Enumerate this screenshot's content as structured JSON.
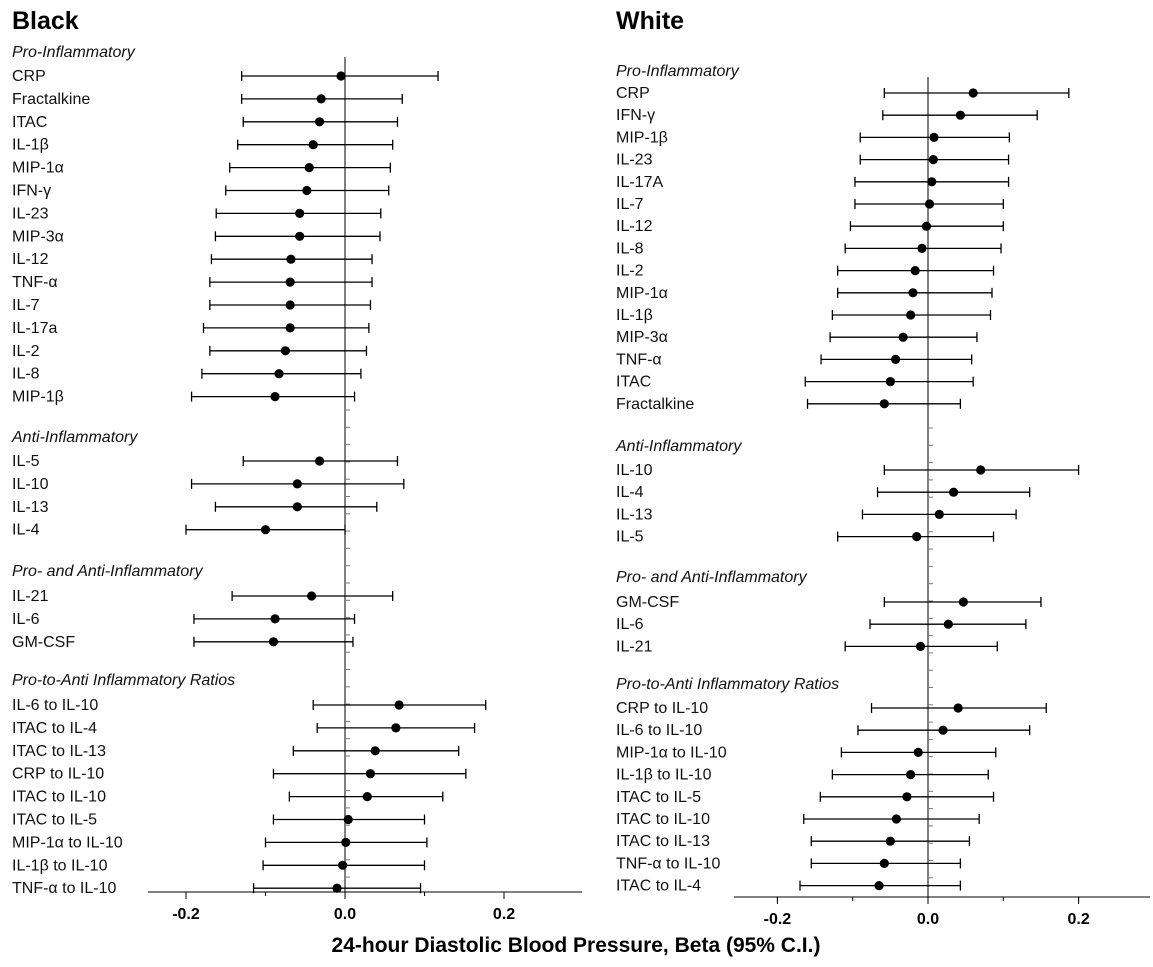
{
  "chart_data": {
    "type": "forest",
    "xlabel": "24-hour Diastolic Blood Pressure, Beta (95% C.I.)",
    "xlim": [
      -0.3,
      0.3
    ],
    "xticks": [
      -0.2,
      0.0,
      0.2
    ],
    "xtick_labels": [
      "-0.2",
      "0.0",
      "0.2"
    ],
    "reference_line": 0,
    "panels": [
      {
        "title": "Black",
        "groups": [
          {
            "title": "Pro-Inflammatory",
            "items": [
              {
                "label": "CRP",
                "est": -0.005,
                "lo": -0.13,
                "hi": 0.117
              },
              {
                "label": "Fractalkine",
                "est": -0.03,
                "lo": -0.13,
                "hi": 0.072
              },
              {
                "label": "ITAC",
                "est": -0.032,
                "lo": -0.128,
                "hi": 0.066
              },
              {
                "label": "IL-1β",
                "est": -0.04,
                "lo": -0.135,
                "hi": 0.06
              },
              {
                "label": "MIP-1α",
                "est": -0.045,
                "lo": -0.145,
                "hi": 0.057
              },
              {
                "label": "IFN-γ",
                "est": -0.048,
                "lo": -0.15,
                "hi": 0.055
              },
              {
                "label": "IL-23",
                "est": -0.057,
                "lo": -0.162,
                "hi": 0.045
              },
              {
                "label": "MIP-3α",
                "est": -0.057,
                "lo": -0.163,
                "hi": 0.044
              },
              {
                "label": "IL-12",
                "est": -0.068,
                "lo": -0.168,
                "hi": 0.034
              },
              {
                "label": "TNF-α",
                "est": -0.069,
                "lo": -0.17,
                "hi": 0.034
              },
              {
                "label": "IL-7",
                "est": -0.069,
                "lo": -0.17,
                "hi": 0.032
              },
              {
                "label": "IL-17a",
                "est": -0.069,
                "lo": -0.178,
                "hi": 0.03
              },
              {
                "label": "IL-2",
                "est": -0.075,
                "lo": -0.17,
                "hi": 0.027
              },
              {
                "label": "IL-8",
                "est": -0.083,
                "lo": -0.18,
                "hi": 0.02
              },
              {
                "label": "MIP-1β",
                "est": -0.088,
                "lo": -0.193,
                "hi": 0.012
              }
            ]
          },
          {
            "title": "Anti-Inflammatory",
            "items": [
              {
                "label": "IL-5",
                "est": -0.032,
                "lo": -0.128,
                "hi": 0.066
              },
              {
                "label": "IL-10",
                "est": -0.06,
                "lo": -0.193,
                "hi": 0.074
              },
              {
                "label": "IL-13",
                "est": -0.06,
                "lo": -0.163,
                "hi": 0.04
              },
              {
                "label": "IL-4",
                "est": -0.1,
                "lo": -0.2,
                "hi": 0.0
              }
            ]
          },
          {
            "title": "Pro- and Anti-Inflammatory",
            "items": [
              {
                "label": "IL-21",
                "est": -0.042,
                "lo": -0.142,
                "hi": 0.06
              },
              {
                "label": "IL-6",
                "est": -0.088,
                "lo": -0.19,
                "hi": 0.012
              },
              {
                "label": "GM-CSF",
                "est": -0.09,
                "lo": -0.19,
                "hi": 0.01
              }
            ]
          },
          {
            "title": "Pro-to-Anti Inflammatory Ratios",
            "items": [
              {
                "label": "IL-6 to IL-10",
                "est": 0.068,
                "lo": -0.04,
                "hi": 0.177
              },
              {
                "label": "ITAC to IL-4",
                "est": 0.064,
                "lo": -0.035,
                "hi": 0.163
              },
              {
                "label": "ITAC to IL-13",
                "est": 0.038,
                "lo": -0.065,
                "hi": 0.143
              },
              {
                "label": "CRP to IL-10",
                "est": 0.032,
                "lo": -0.09,
                "hi": 0.152
              },
              {
                "label": "ITAC to IL-10",
                "est": 0.028,
                "lo": -0.07,
                "hi": 0.123
              },
              {
                "label": "ITAC to IL-5",
                "est": 0.004,
                "lo": -0.09,
                "hi": 0.1
              },
              {
                "label": "MIP-1α to IL-10",
                "est": 0.001,
                "lo": -0.1,
                "hi": 0.103
              },
              {
                "label": "IL-1β to IL-10",
                "est": -0.003,
                "lo": -0.103,
                "hi": 0.1
              },
              {
                "label": "TNF-α to IL-10",
                "est": -0.01,
                "lo": -0.115,
                "hi": 0.095
              }
            ]
          }
        ]
      },
      {
        "title": "White",
        "groups": [
          {
            "title": "Pro-Inflammatory",
            "items": [
              {
                "label": "CRP",
                "est": 0.06,
                "lo": -0.058,
                "hi": 0.187
              },
              {
                "label": "IFN-γ",
                "est": 0.043,
                "lo": -0.06,
                "hi": 0.145
              },
              {
                "label": "MIP-1β",
                "est": 0.008,
                "lo": -0.09,
                "hi": 0.108
              },
              {
                "label": "IL-23",
                "est": 0.007,
                "lo": -0.09,
                "hi": 0.107
              },
              {
                "label": "IL-17A",
                "est": 0.005,
                "lo": -0.097,
                "hi": 0.107
              },
              {
                "label": "IL-7",
                "est": 0.002,
                "lo": -0.097,
                "hi": 0.1
              },
              {
                "label": "IL-12",
                "est": -0.002,
                "lo": -0.103,
                "hi": 0.1
              },
              {
                "label": "IL-8",
                "est": -0.008,
                "lo": -0.11,
                "hi": 0.097
              },
              {
                "label": "IL-2",
                "est": -0.017,
                "lo": -0.12,
                "hi": 0.087
              },
              {
                "label": "MIP-1α",
                "est": -0.02,
                "lo": -0.12,
                "hi": 0.085
              },
              {
                "label": "IL-1β",
                "est": -0.023,
                "lo": -0.127,
                "hi": 0.083
              },
              {
                "label": "MIP-3α",
                "est": -0.033,
                "lo": -0.13,
                "hi": 0.065
              },
              {
                "label": "TNF-α",
                "est": -0.043,
                "lo": -0.142,
                "hi": 0.058
              },
              {
                "label": "ITAC",
                "est": -0.05,
                "lo": -0.163,
                "hi": 0.06
              },
              {
                "label": "Fractalkine",
                "est": -0.058,
                "lo": -0.16,
                "hi": 0.043
              }
            ]
          },
          {
            "title": "Anti-Inflammatory",
            "items": [
              {
                "label": "IL-10",
                "est": 0.07,
                "lo": -0.058,
                "hi": 0.2
              },
              {
                "label": "IL-4",
                "est": 0.034,
                "lo": -0.067,
                "hi": 0.135
              },
              {
                "label": "IL-13",
                "est": 0.015,
                "lo": -0.087,
                "hi": 0.117
              },
              {
                "label": "IL-5",
                "est": -0.015,
                "lo": -0.12,
                "hi": 0.087
              }
            ]
          },
          {
            "title": "Pro- and Anti-Inflammatory",
            "items": [
              {
                "label": "GM-CSF",
                "est": 0.047,
                "lo": -0.058,
                "hi": 0.15
              },
              {
                "label": "IL-6",
                "est": 0.027,
                "lo": -0.077,
                "hi": 0.13
              },
              {
                "label": "IL-21",
                "est": -0.01,
                "lo": -0.11,
                "hi": 0.092
              }
            ]
          },
          {
            "title": "Pro-to-Anti Inflammatory Ratios",
            "items": [
              {
                "label": "CRP to IL-10",
                "est": 0.04,
                "lo": -0.075,
                "hi": 0.157
              },
              {
                "label": "IL-6 to IL-10",
                "est": 0.02,
                "lo": -0.093,
                "hi": 0.135
              },
              {
                "label": "MIP-1α to IL-10",
                "est": -0.013,
                "lo": -0.115,
                "hi": 0.09
              },
              {
                "label": "IL-1β to IL-10",
                "est": -0.023,
                "lo": -0.127,
                "hi": 0.08
              },
              {
                "label": "ITAC to IL-5",
                "est": -0.028,
                "lo": -0.143,
                "hi": 0.087
              },
              {
                "label": "ITAC to IL-10",
                "est": -0.042,
                "lo": -0.165,
                "hi": 0.068
              },
              {
                "label": "ITAC to IL-13",
                "est": -0.05,
                "lo": -0.155,
                "hi": 0.055
              },
              {
                "label": "TNF-α to IL-10",
                "est": -0.058,
                "lo": -0.155,
                "hi": 0.043
              },
              {
                "label": "ITAC to IL-4",
                "est": -0.065,
                "lo": -0.17,
                "hi": 0.043
              }
            ]
          }
        ]
      }
    ]
  }
}
